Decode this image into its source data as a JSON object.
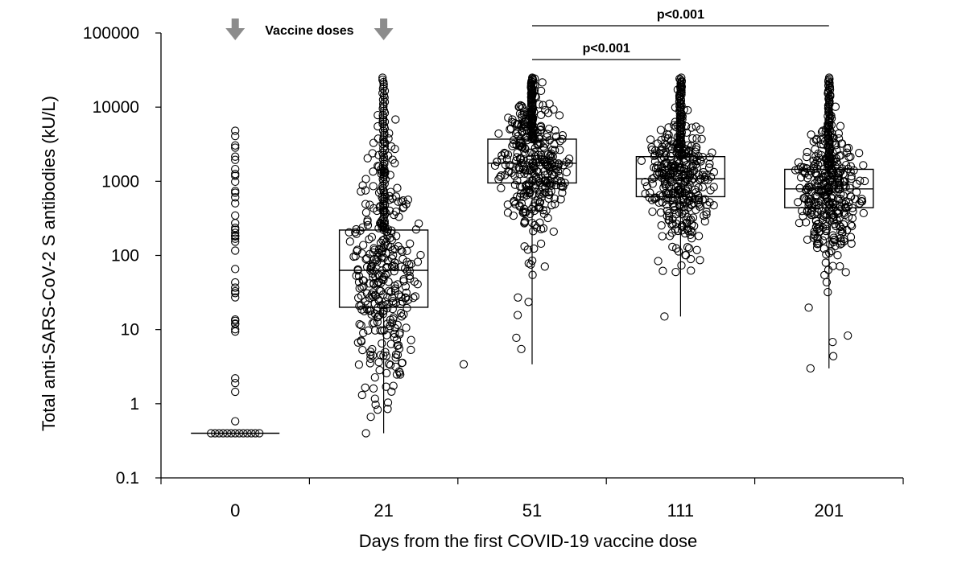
{
  "chart_data": {
    "type": "box",
    "xlabel": "Days from the first COVID-19 vaccine dose",
    "ylabel": "Total anti-SARS-CoV-2  S antibodies (kU/L)",
    "yscale": "log",
    "ylim": [
      0.1,
      100000
    ],
    "y_tick_labels": [
      "100000",
      "10000",
      "1000",
      "100",
      "10",
      "1",
      "0.1"
    ],
    "y_tick_values": [
      100000,
      10000,
      1000,
      100,
      10,
      1,
      0.1
    ],
    "categories": [
      "0",
      "21",
      "51",
      "111",
      "201"
    ],
    "boxes": [
      {
        "category": "0",
        "q1": 0.4,
        "median": 0.4,
        "q3": 0.4,
        "whisker_low": 0.4,
        "whisker_high": 0.4,
        "max_point": 4800
      },
      {
        "category": "21",
        "q1": 20,
        "median": 63,
        "q3": 220,
        "whisker_low": 0.4,
        "whisker_high": 25000,
        "min_point": 0.4
      },
      {
        "category": "51",
        "q1": 950,
        "median": 1750,
        "q3": 3700,
        "whisker_low": 3.4,
        "whisker_high": 25000,
        "min_point": 3.4
      },
      {
        "category": "111",
        "q1": 620,
        "median": 1080,
        "q3": 2150,
        "whisker_low": 15,
        "whisker_high": 25000,
        "min_point": 15
      },
      {
        "category": "201",
        "q1": 440,
        "median": 790,
        "q3": 1450,
        "whisker_low": 3,
        "whisker_high": 25000,
        "min_point": 3
      }
    ],
    "annotations": {
      "vaccine_doses_label": "Vaccine doses",
      "vaccine_dose_days": [
        "0",
        "21"
      ],
      "significance": [
        {
          "from": "51",
          "to": "111",
          "label": "p<0.001"
        },
        {
          "from": "51",
          "to": "201",
          "label": "p<0.001"
        }
      ]
    },
    "grid": false,
    "legend": "none",
    "colors": {
      "points": "#000000",
      "box": "#000000",
      "arrow": "#8c8c8c",
      "background": "#ffffff"
    }
  }
}
